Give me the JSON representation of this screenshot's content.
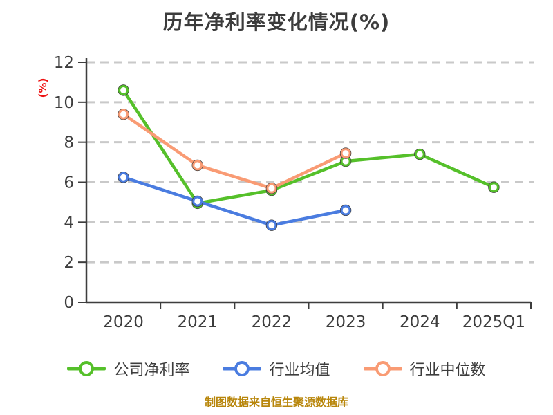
{
  "chart_data": {
    "type": "line",
    "title": "历年净利率变化情况(%)",
    "ylabel": "(%)",
    "footer": "制图数据来自恒生聚源数据库",
    "categories": [
      "2020",
      "2021",
      "2022",
      "2023",
      "2024",
      "2025Q1"
    ],
    "series": [
      {
        "id": "company-net-margin",
        "name": "公司净利率",
        "color": "#55c02a",
        "values": [
          10.6,
          4.95,
          5.6,
          7.05,
          7.4,
          5.75
        ]
      },
      {
        "id": "industry-average",
        "name": "行业均值",
        "color": "#4a7ce0",
        "values": [
          6.25,
          5.05,
          3.85,
          4.6,
          null,
          null
        ]
      },
      {
        "id": "industry-median",
        "name": "行业中位数",
        "color": "#f99b74",
        "values": [
          9.4,
          6.85,
          5.7,
          7.45,
          null,
          null
        ]
      }
    ],
    "ylim": [
      0,
      12
    ],
    "ytick_step": 2,
    "grid": "horizontal-dashed",
    "legend_position": "bottom",
    "colors": {
      "title": "#3c3c3c",
      "axis": "#3d3d3d",
      "grid": "#c9c9c9",
      "ylabel": "#ee1111",
      "footer": "#b8860b",
      "marker_fill": "#ffffff",
      "marker_dark_edge": "#3a3a3a"
    }
  }
}
